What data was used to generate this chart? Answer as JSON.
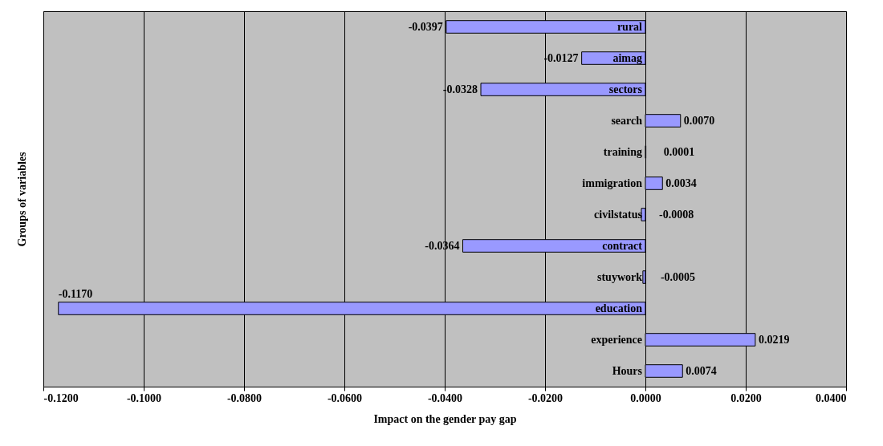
{
  "chart_data": {
    "type": "bar",
    "orientation": "horizontal",
    "xlabel": "Impact on the gender pay gap",
    "ylabel": "Groups of variables",
    "categories": [
      "rural",
      "aimag",
      "sectors",
      "search",
      "training",
      "immigration",
      "civilstatus",
      "contract",
      "stuywork",
      "education",
      "experience",
      "Hours"
    ],
    "values": [
      -0.0397,
      -0.0127,
      -0.0328,
      0.007,
      0.0001,
      0.0034,
      -0.0008,
      -0.0364,
      -0.0005,
      -0.117,
      0.0219,
      0.0074
    ],
    "color": "#9999ff",
    "value_labels": [
      "-0.0397",
      "-0.0127",
      "-0.0328",
      "0.0070",
      "0.0001",
      "0.0034",
      "-0.0008",
      "-0.0364",
      "-0.0005",
      "-0.1170",
      "0.0219",
      "0.0074"
    ],
    "xlim": [
      -0.12,
      0.04
    ],
    "xticks": [
      {
        "value": -0.12,
        "label": "-0.1200"
      },
      {
        "value": -0.1,
        "label": "-0.1000"
      },
      {
        "value": -0.08,
        "label": "-0.0800"
      },
      {
        "value": -0.06,
        "label": "-0.0600"
      },
      {
        "value": -0.04,
        "label": "-0.0400"
      },
      {
        "value": -0.02,
        "label": "-0.0200"
      },
      {
        "value": 0,
        "label": "0.0000"
      },
      {
        "value": 0.02,
        "label": "0.0200"
      },
      {
        "value": 0.04,
        "label": "0.0400"
      }
    ],
    "grid": "x"
  }
}
